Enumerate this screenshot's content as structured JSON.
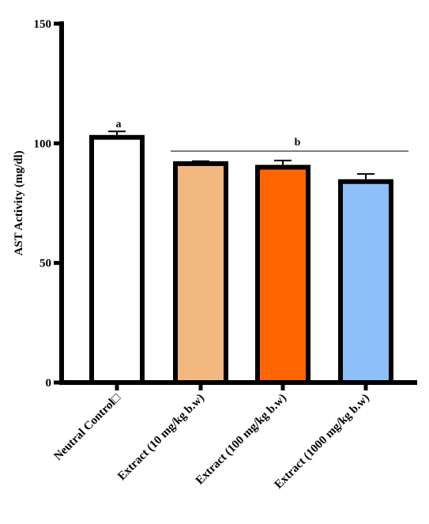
{
  "chart_data": {
    "type": "bar",
    "title": "",
    "xlabel": "",
    "ylabel": "AST Activity (mg/dl)",
    "ylim": [
      0,
      150
    ],
    "yticks": [
      0,
      50,
      100,
      150
    ],
    "grid": false,
    "categories": [
      "Neutral Control□",
      "Extract (10 mg/kg b.w)",
      "Extract (100 mg/kg b.w)",
      "Extract (1000 mg/kg b.w)"
    ],
    "values": [
      102.5,
      91.5,
      90,
      84
    ],
    "errors": [
      2.5,
      1.0,
      2.8,
      3.2
    ],
    "colors": [
      "#ffffff",
      "#f2b880",
      "#ff6600",
      "#8ebff8"
    ],
    "annotations": [
      {
        "text": "a",
        "categories": [
          0
        ]
      },
      {
        "text": "b",
        "categories": [
          1,
          2,
          3
        ]
      }
    ]
  }
}
